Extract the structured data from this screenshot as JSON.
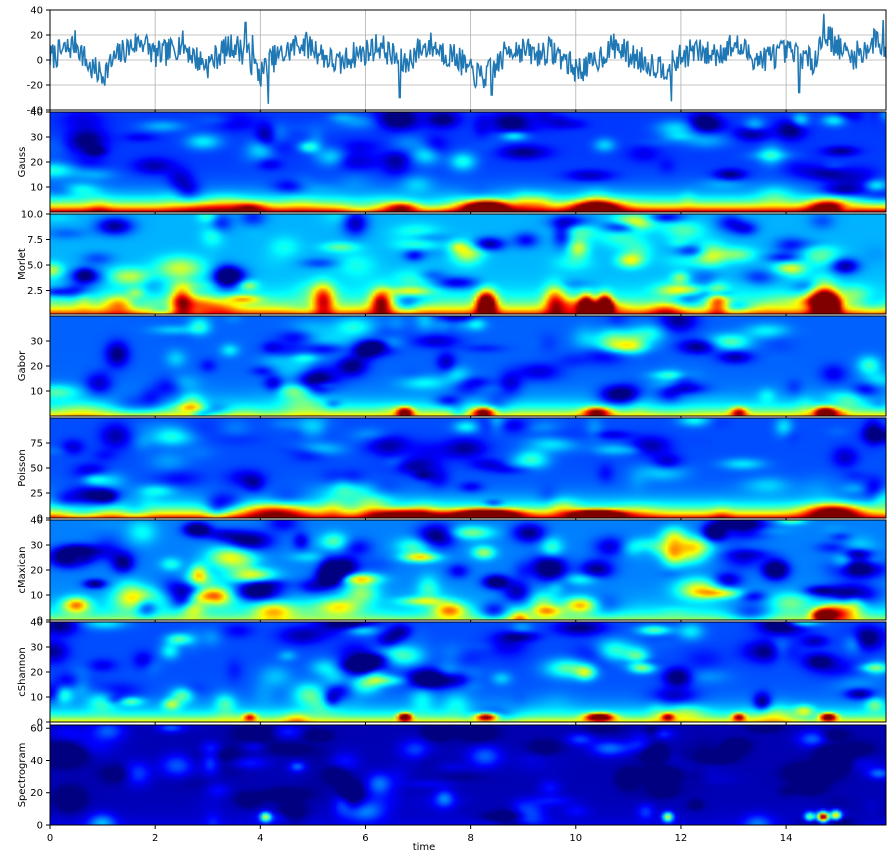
{
  "figure": {
    "xlabel": "time"
  },
  "chart_data": [
    {
      "type": "line",
      "panel": "signal",
      "ylabel": "",
      "xlim": [
        0,
        15.9
      ],
      "ylim": [
        -40,
        40
      ],
      "yticks": [
        40,
        20,
        0,
        -20,
        -40
      ],
      "grid": true,
      "color": "#1f77b4",
      "anchors": [
        [
          0.0,
          2
        ],
        [
          0.3,
          8
        ],
        [
          0.5,
          14
        ],
        [
          0.75,
          -6
        ],
        [
          1.0,
          -12
        ],
        [
          1.25,
          2
        ],
        [
          1.5,
          10
        ],
        [
          1.75,
          16
        ],
        [
          2.0,
          4
        ],
        [
          2.25,
          6
        ],
        [
          2.5,
          14
        ],
        [
          2.75,
          2
        ],
        [
          3.0,
          -4
        ],
        [
          3.25,
          6
        ],
        [
          3.5,
          12
        ],
        [
          3.75,
          4
        ],
        [
          4.0,
          -12
        ],
        [
          4.2,
          0
        ],
        [
          4.5,
          6
        ],
        [
          4.75,
          14
        ],
        [
          5.0,
          10
        ],
        [
          5.25,
          2
        ],
        [
          5.5,
          -4
        ],
        [
          5.75,
          4
        ],
        [
          6.0,
          6
        ],
        [
          6.25,
          12
        ],
        [
          6.5,
          4
        ],
        [
          6.75,
          -4
        ],
        [
          7.0,
          8
        ],
        [
          7.25,
          12
        ],
        [
          7.5,
          6
        ],
        [
          7.75,
          2
        ],
        [
          8.0,
          -10
        ],
        [
          8.25,
          -14
        ],
        [
          8.5,
          -4
        ],
        [
          8.75,
          10
        ],
        [
          9.0,
          8
        ],
        [
          9.25,
          4
        ],
        [
          9.5,
          8
        ],
        [
          9.75,
          2
        ],
        [
          10.0,
          -8
        ],
        [
          10.3,
          -4
        ],
        [
          10.5,
          4
        ],
        [
          10.75,
          12
        ],
        [
          11.0,
          4
        ],
        [
          11.25,
          0
        ],
        [
          11.5,
          -4
        ],
        [
          11.75,
          -6
        ],
        [
          12.0,
          2
        ],
        [
          12.25,
          8
        ],
        [
          12.5,
          4
        ],
        [
          12.75,
          6
        ],
        [
          13.0,
          12
        ],
        [
          13.25,
          6
        ],
        [
          13.5,
          0
        ],
        [
          13.75,
          4
        ],
        [
          14.0,
          6
        ],
        [
          14.25,
          4
        ],
        [
          14.5,
          -2
        ],
        [
          14.75,
          22
        ],
        [
          15.0,
          10
        ],
        [
          15.25,
          2
        ],
        [
          15.5,
          8
        ],
        [
          15.75,
          18
        ],
        [
          15.9,
          2
        ]
      ],
      "spikes": [
        [
          14.72,
          37
        ],
        [
          3.72,
          30
        ],
        [
          4.15,
          -35
        ],
        [
          11.82,
          -33
        ],
        [
          6.65,
          -30
        ],
        [
          8.4,
          -28
        ],
        [
          14.25,
          -26
        ],
        [
          3.85,
          20
        ],
        [
          15.85,
          32
        ]
      ]
    },
    {
      "type": "heatmap",
      "panel": "scalogram",
      "ylabel": "Gauss",
      "xlim": [
        0,
        15.9
      ],
      "ylim": [
        0,
        40
      ],
      "yticks": [
        40,
        30,
        20,
        10
      ],
      "low_band": 0.8,
      "background": 0.18,
      "variation": 0.22,
      "hotspots": [
        [
          8.3,
          2,
          0.85,
          0.4,
          2.5
        ],
        [
          10.4,
          2,
          0.6,
          0.45,
          2.5
        ],
        [
          14.8,
          2,
          0.55,
          0.35,
          3
        ],
        [
          6.7,
          2,
          0.35,
          0.3,
          2
        ],
        [
          3.8,
          2,
          0.3,
          0.3,
          2
        ]
      ]
    },
    {
      "type": "heatmap",
      "panel": "scalogram",
      "ylabel": "Morlet",
      "xlim": [
        0,
        15.9
      ],
      "ylim": [
        0.2,
        10
      ],
      "yticks": [
        10.0,
        7.5,
        5.0,
        2.5
      ],
      "ytick_format": "fixed1",
      "low_band": 0.55,
      "background": 0.3,
      "variation": 0.3,
      "hotspots": [
        [
          8.3,
          1.2,
          0.9,
          0.18,
          1.2
        ],
        [
          10.55,
          1.0,
          0.95,
          0.14,
          1.0
        ],
        [
          10.2,
          1.0,
          0.75,
          0.14,
          1.0
        ],
        [
          14.7,
          1.5,
          0.75,
          0.25,
          1.6
        ],
        [
          14.85,
          1.0,
          0.6,
          0.18,
          1.0
        ],
        [
          6.3,
          1.4,
          0.55,
          0.2,
          1.2
        ],
        [
          2.5,
          1.5,
          0.45,
          0.2,
          1.5
        ],
        [
          5.2,
          1.5,
          0.45,
          0.2,
          1.5
        ],
        [
          12.7,
          1.5,
          0.4,
          0.2,
          1.5
        ],
        [
          9.6,
          1.5,
          0.4,
          0.2,
          1.5
        ]
      ]
    },
    {
      "type": "heatmap",
      "panel": "scalogram",
      "ylabel": "Gabor",
      "xlim": [
        0,
        15.9
      ],
      "ylim": [
        0,
        40
      ],
      "yticks": [
        30,
        20,
        10
      ],
      "low_band": 0.45,
      "background": 0.22,
      "variation": 0.25,
      "hotspots": [
        [
          14.75,
          1.5,
          0.8,
          0.2,
          2
        ],
        [
          6.75,
          1.5,
          0.65,
          0.15,
          2
        ],
        [
          8.25,
          1.5,
          0.6,
          0.2,
          2
        ],
        [
          10.4,
          1.5,
          0.55,
          0.25,
          2
        ],
        [
          13.1,
          1.5,
          0.45,
          0.15,
          2
        ]
      ]
    },
    {
      "type": "heatmap",
      "panel": "scalogram",
      "ylabel": "Poisson",
      "xlim": [
        0,
        15.9
      ],
      "ylim": [
        0,
        100
      ],
      "yticks": [
        75,
        50,
        25,
        0
      ],
      "low_band": 0.7,
      "background": 0.2,
      "variation": 0.18,
      "hotspots": [
        [
          8.3,
          4,
          0.8,
          0.6,
          5
        ],
        [
          10.4,
          4,
          0.95,
          0.45,
          4
        ],
        [
          14.9,
          6,
          0.6,
          0.5,
          8
        ],
        [
          6.7,
          4,
          0.45,
          0.5,
          5
        ],
        [
          4.3,
          6,
          0.4,
          0.6,
          8
        ]
      ]
    },
    {
      "type": "heatmap",
      "panel": "scalogram",
      "ylabel": "cMaxican",
      "xlim": [
        0,
        15.9
      ],
      "ylim": [
        0,
        40
      ],
      "yticks": [
        40,
        30,
        20,
        10,
        0
      ],
      "low_band": 0.3,
      "background": 0.25,
      "variation": 0.4,
      "hotspots": [
        [
          14.7,
          2,
          0.75,
          0.2,
          2.5
        ],
        [
          0.5,
          6,
          0.45,
          0.25,
          3
        ],
        [
          7.6,
          4,
          0.4,
          0.3,
          3
        ],
        [
          10.1,
          6,
          0.4,
          0.3,
          3
        ],
        [
          3.0,
          10,
          0.35,
          0.3,
          3
        ]
      ]
    },
    {
      "type": "heatmap",
      "panel": "scalogram",
      "ylabel": "cShannon",
      "xlim": [
        0,
        15.9
      ],
      "ylim": [
        0,
        40
      ],
      "yticks": [
        40,
        30,
        20,
        10,
        0
      ],
      "low_band": 0.45,
      "background": 0.2,
      "variation": 0.3,
      "hotspots": [
        [
          6.75,
          2,
          0.85,
          0.12,
          1.5
        ],
        [
          8.3,
          2,
          0.75,
          0.2,
          1.5
        ],
        [
          10.45,
          2,
          0.85,
          0.25,
          1.5
        ],
        [
          14.8,
          2,
          0.8,
          0.15,
          1.5
        ],
        [
          13.1,
          2,
          0.55,
          0.12,
          1.5
        ],
        [
          11.75,
          2,
          0.5,
          0.12,
          1.5
        ],
        [
          3.8,
          2,
          0.45,
          0.12,
          1.5
        ]
      ]
    },
    {
      "type": "heatmap",
      "panel": "spectrogram",
      "ylabel": "Spectrogram",
      "xlim": [
        0,
        15.9
      ],
      "ylim": [
        0,
        62
      ],
      "yticks": [
        60,
        40,
        20,
        0
      ],
      "xticks": [
        0,
        2,
        4,
        6,
        8,
        10,
        12,
        14
      ],
      "low_band": 0.05,
      "background": 0.05,
      "variation": 0.2,
      "hotspots": [
        [
          14.7,
          5,
          0.95,
          0.1,
          3
        ],
        [
          14.95,
          6,
          0.6,
          0.1,
          3
        ],
        [
          14.45,
          5,
          0.45,
          0.1,
          3
        ],
        [
          11.75,
          5,
          0.5,
          0.1,
          3
        ],
        [
          4.1,
          5,
          0.45,
          0.1,
          3
        ]
      ]
    }
  ]
}
